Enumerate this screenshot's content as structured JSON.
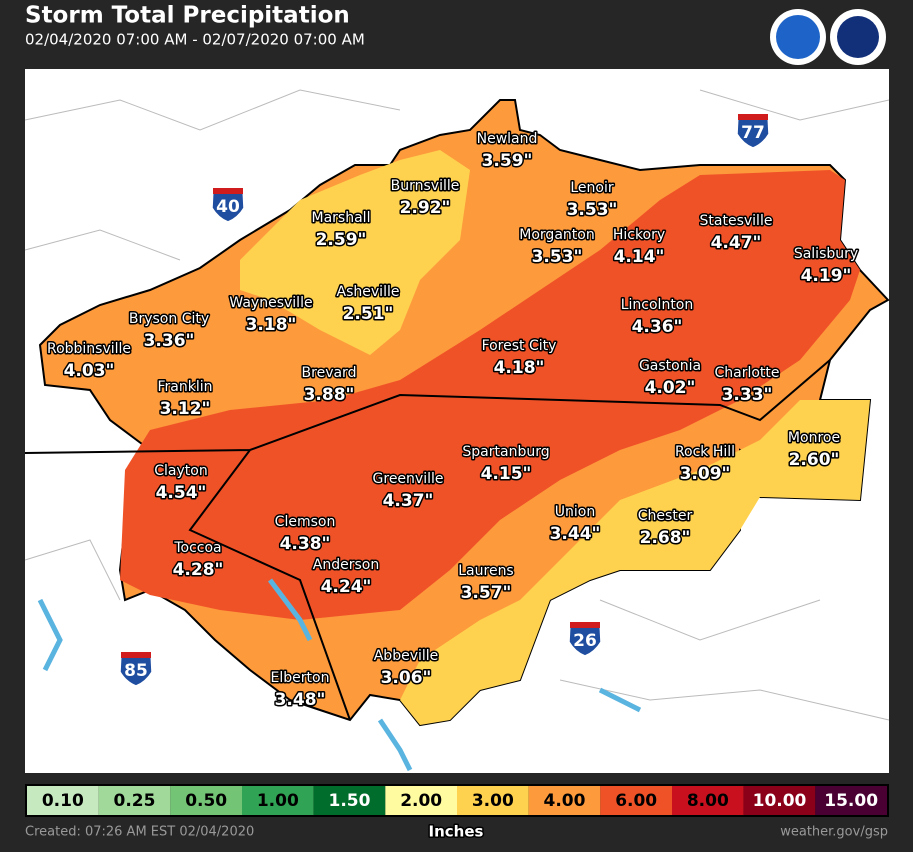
{
  "header": {
    "title": "Storm Total Precipitation",
    "subtitle": "02/04/2020 07:00 AM - 02/07/2020 07:00 AM"
  },
  "interstates": [
    "40",
    "77",
    "85",
    "26"
  ],
  "cities": [
    {
      "name": "Newland",
      "amount": "3.59\""
    },
    {
      "name": "Burnsville",
      "amount": "2.92\""
    },
    {
      "name": "Lenoir",
      "amount": "3.53\""
    },
    {
      "name": "Marshall",
      "amount": "2.59\""
    },
    {
      "name": "Morganton",
      "amount": "3.53\""
    },
    {
      "name": "Hickory",
      "amount": "4.14\""
    },
    {
      "name": "Statesville",
      "amount": "4.47\""
    },
    {
      "name": "Salisbury",
      "amount": "4.19\""
    },
    {
      "name": "Waynesville",
      "amount": "3.18\""
    },
    {
      "name": "Asheville",
      "amount": "2.51\""
    },
    {
      "name": "Bryson City",
      "amount": "3.36\""
    },
    {
      "name": "Lincolnton",
      "amount": "4.36\""
    },
    {
      "name": "Robbinsville",
      "amount": "4.03\""
    },
    {
      "name": "Forest City",
      "amount": "4.18\""
    },
    {
      "name": "Gastonia",
      "amount": "4.02\""
    },
    {
      "name": "Charlotte",
      "amount": "3.33\""
    },
    {
      "name": "Franklin",
      "amount": "3.12\""
    },
    {
      "name": "Brevard",
      "amount": "3.88\""
    },
    {
      "name": "Monroe",
      "amount": "2.60\""
    },
    {
      "name": "Spartanburg",
      "amount": "4.15\""
    },
    {
      "name": "Rock Hill",
      "amount": "3.09\""
    },
    {
      "name": "Clayton",
      "amount": "4.54\""
    },
    {
      "name": "Greenville",
      "amount": "4.37\""
    },
    {
      "name": "Clemson",
      "amount": "4.38\""
    },
    {
      "name": "Union",
      "amount": "3.44\""
    },
    {
      "name": "Chester",
      "amount": "2.68\""
    },
    {
      "name": "Toccoa",
      "amount": "4.28\""
    },
    {
      "name": "Anderson",
      "amount": "4.24\""
    },
    {
      "name": "Laurens",
      "amount": "3.57\""
    },
    {
      "name": "Abbeville",
      "amount": "3.06\""
    },
    {
      "name": "Elberton",
      "amount": "3.48\""
    }
  ],
  "legend": {
    "title": "Inches",
    "items": [
      {
        "label": "0.10",
        "color": "#c7e9c0"
      },
      {
        "label": "0.25",
        "color": "#a1d99b"
      },
      {
        "label": "0.50",
        "color": "#74c476"
      },
      {
        "label": "1.00",
        "color": "#31a354"
      },
      {
        "label": "1.50",
        "color": "#006d2c"
      },
      {
        "label": "2.00",
        "color": "#fffba0"
      },
      {
        "label": "3.00",
        "color": "#fed24f"
      },
      {
        "label": "4.00",
        "color": "#fd9a3c"
      },
      {
        "label": "6.00",
        "color": "#f05228"
      },
      {
        "label": "8.00",
        "color": "#c8101e"
      },
      {
        "label": "10.00",
        "color": "#8b0018"
      },
      {
        "label": "15.00",
        "color": "#4a0032"
      }
    ]
  },
  "footer": {
    "created": "Created: 07:26 AM EST 02/04/2020",
    "site": "weather.gov/gsp"
  }
}
